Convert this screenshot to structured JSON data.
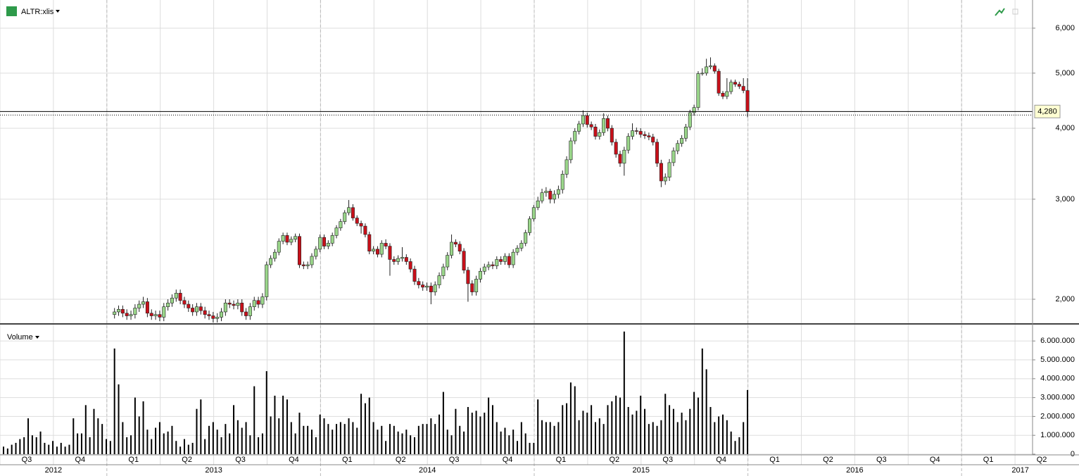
{
  "header": {
    "symbol": "ALTR:xlis",
    "volume_label": "Volume"
  },
  "chart_data": [
    {
      "type": "candlestick",
      "log": true,
      "grid": true,
      "up_color": "#9ad68a",
      "down_color": "#c8101a",
      "ylim": [
        1815,
        6725
      ],
      "yticks": [
        {
          "value": 2000,
          "label": "2,000"
        },
        {
          "value": 3000,
          "label": "3,000"
        },
        {
          "value": 4000,
          "label": "4,000"
        },
        {
          "value": 5000,
          "label": "5,000"
        },
        {
          "value": 6000,
          "label": "6,000"
        }
      ],
      "last_price": {
        "value": 4280,
        "label": "4,280"
      },
      "candles": [
        null,
        null,
        null,
        null,
        null,
        null,
        null,
        null,
        null,
        null,
        null,
        null,
        null,
        null,
        null,
        null,
        null,
        null,
        null,
        null,
        null,
        null,
        null,
        null,
        null,
        null,
        null,
        [
          1880,
          1930,
          1850,
          1900
        ],
        [
          1900,
          1950,
          1870,
          1920
        ],
        [
          1920,
          1950,
          1860,
          1890
        ],
        [
          1890,
          1920,
          1840,
          1870
        ],
        [
          1870,
          1910,
          1840,
          1880
        ],
        [
          1880,
          1960,
          1850,
          1930
        ],
        [
          1930,
          1990,
          1900,
          1960
        ],
        [
          1960,
          2020,
          1930,
          1980
        ],
        [
          1980,
          2010,
          1860,
          1890
        ],
        [
          1890,
          1920,
          1840,
          1870
        ],
        [
          1870,
          1910,
          1840,
          1880
        ],
        [
          1880,
          1910,
          1830,
          1860
        ],
        [
          1860,
          1970,
          1830,
          1940
        ],
        [
          1940,
          2000,
          1910,
          1970
        ],
        [
          1970,
          2040,
          1940,
          2010
        ],
        [
          2010,
          2080,
          1980,
          2050
        ],
        [
          2050,
          2080,
          1960,
          1990
        ],
        [
          1990,
          2020,
          1930,
          1960
        ],
        [
          1960,
          1990,
          1900,
          1930
        ],
        [
          1930,
          1960,
          1870,
          1900
        ],
        [
          1900,
          1970,
          1870,
          1940
        ],
        [
          1940,
          1970,
          1880,
          1910
        ],
        [
          1910,
          1940,
          1850,
          1880
        ],
        [
          1880,
          1910,
          1840,
          1870
        ],
        [
          1870,
          1900,
          1820,
          1850
        ],
        [
          1850,
          1890,
          1820,
          1860
        ],
        [
          1860,
          1930,
          1830,
          1900
        ],
        [
          1900,
          2000,
          1870,
          1970
        ],
        [
          1970,
          2000,
          1930,
          1960
        ],
        [
          1960,
          1990,
          1920,
          1950
        ],
        [
          1950,
          2000,
          1920,
          1970
        ],
        [
          1970,
          2000,
          1870,
          1900
        ],
        [
          1900,
          1930,
          1840,
          1870
        ],
        [
          1870,
          1970,
          1840,
          1940
        ],
        [
          1940,
          2020,
          1910,
          1990
        ],
        [
          1990,
          2020,
          1930,
          1960
        ],
        [
          1960,
          2050,
          1930,
          2020
        ],
        [
          2020,
          2330,
          1990,
          2300
        ],
        [
          2300,
          2390,
          2270,
          2360
        ],
        [
          2360,
          2450,
          2330,
          2420
        ],
        [
          2420,
          2560,
          2390,
          2530
        ],
        [
          2530,
          2620,
          2500,
          2590
        ],
        [
          2590,
          2620,
          2490,
          2520
        ],
        [
          2520,
          2580,
          2490,
          2550
        ],
        [
          2550,
          2610,
          2520,
          2580
        ],
        [
          2580,
          2610,
          2270,
          2300
        ],
        [
          2300,
          2330,
          2260,
          2290
        ],
        [
          2290,
          2330,
          2260,
          2300
        ],
        [
          2300,
          2410,
          2270,
          2380
        ],
        [
          2380,
          2480,
          2350,
          2450
        ],
        [
          2450,
          2600,
          2420,
          2570
        ],
        [
          2570,
          2600,
          2450,
          2480
        ],
        [
          2480,
          2540,
          2450,
          2510
        ],
        [
          2510,
          2620,
          2480,
          2590
        ],
        [
          2590,
          2700,
          2560,
          2670
        ],
        [
          2670,
          2770,
          2640,
          2740
        ],
        [
          2740,
          2870,
          2710,
          2840
        ],
        [
          2840,
          2990,
          2810,
          2900
        ],
        [
          2900,
          2940,
          2750,
          2780
        ],
        [
          2780,
          2810,
          2690,
          2720
        ],
        [
          2720,
          2750,
          2610,
          2690
        ],
        [
          2690,
          2720,
          2570,
          2600
        ],
        [
          2600,
          2630,
          2400,
          2430
        ],
        [
          2430,
          2480,
          2400,
          2450
        ],
        [
          2450,
          2480,
          2370,
          2400
        ],
        [
          2400,
          2540,
          2370,
          2510
        ],
        [
          2510,
          2550,
          2450,
          2480
        ],
        [
          2480,
          2510,
          2200,
          2350
        ],
        [
          2350,
          2380,
          2300,
          2330
        ],
        [
          2330,
          2390,
          2300,
          2360
        ],
        [
          2360,
          2470,
          2330,
          2370
        ],
        [
          2370,
          2400,
          2300,
          2330
        ],
        [
          2330,
          2360,
          2230,
          2260
        ],
        [
          2260,
          2290,
          2120,
          2150
        ],
        [
          2150,
          2180,
          2090,
          2120
        ],
        [
          2120,
          2150,
          2070,
          2100
        ],
        [
          2100,
          2140,
          2070,
          2110
        ],
        [
          2110,
          2140,
          1960,
          2060
        ],
        [
          2060,
          2150,
          2030,
          2120
        ],
        [
          2120,
          2230,
          2090,
          2200
        ],
        [
          2200,
          2310,
          2170,
          2280
        ],
        [
          2280,
          2420,
          2250,
          2390
        ],
        [
          2390,
          2600,
          2360,
          2520
        ],
        [
          2520,
          2550,
          2470,
          2500
        ],
        [
          2500,
          2530,
          2400,
          2430
        ],
        [
          2430,
          2460,
          2220,
          2250
        ],
        [
          2250,
          2280,
          1980,
          2130
        ],
        [
          2130,
          2160,
          2030,
          2060
        ],
        [
          2060,
          2200,
          2030,
          2170
        ],
        [
          2170,
          2270,
          2140,
          2240
        ],
        [
          2240,
          2310,
          2210,
          2280
        ],
        [
          2280,
          2330,
          2250,
          2300
        ],
        [
          2300,
          2330,
          2260,
          2290
        ],
        [
          2290,
          2380,
          2260,
          2350
        ],
        [
          2350,
          2380,
          2300,
          2330
        ],
        [
          2330,
          2410,
          2300,
          2380
        ],
        [
          2380,
          2410,
          2270,
          2300
        ],
        [
          2300,
          2450,
          2270,
          2420
        ],
        [
          2420,
          2490,
          2390,
          2460
        ],
        [
          2460,
          2540,
          2430,
          2510
        ],
        [
          2510,
          2650,
          2480,
          2620
        ],
        [
          2620,
          2800,
          2590,
          2770
        ],
        [
          2770,
          2930,
          2740,
          2900
        ],
        [
          2900,
          3030,
          2870,
          2980
        ],
        [
          2980,
          3130,
          2950,
          3080
        ],
        [
          3080,
          3150,
          3030,
          3100
        ],
        [
          3100,
          3130,
          2950,
          3000
        ],
        [
          3000,
          3110,
          2950,
          3060
        ],
        [
          3060,
          3170,
          3010,
          3120
        ],
        [
          3120,
          3370,
          3070,
          3320
        ],
        [
          3320,
          3570,
          3270,
          3520
        ],
        [
          3520,
          3850,
          3470,
          3800
        ],
        [
          3800,
          4000,
          3750,
          3950
        ],
        [
          3950,
          4120,
          3900,
          4070
        ],
        [
          4070,
          4300,
          4020,
          4210
        ],
        [
          4210,
          4260,
          4010,
          4060
        ],
        [
          4060,
          4110,
          3970,
          4020
        ],
        [
          4020,
          4070,
          3820,
          3870
        ],
        [
          3870,
          3980,
          3820,
          3930
        ],
        [
          3930,
          4250,
          3880,
          4160
        ],
        [
          4160,
          4210,
          3950,
          4000
        ],
        [
          4000,
          4050,
          3730,
          3780
        ],
        [
          3780,
          3830,
          3550,
          3600
        ],
        [
          3600,
          3650,
          3420,
          3470
        ],
        [
          3470,
          3710,
          3300,
          3660
        ],
        [
          3660,
          3920,
          3610,
          3870
        ],
        [
          3870,
          4080,
          3820,
          3960
        ],
        [
          3960,
          4010,
          3900,
          3950
        ],
        [
          3950,
          4000,
          3850,
          3900
        ],
        [
          3900,
          3950,
          3830,
          3880
        ],
        [
          3880,
          3930,
          3810,
          3860
        ],
        [
          3860,
          3910,
          3730,
          3780
        ],
        [
          3780,
          3830,
          3420,
          3470
        ],
        [
          3470,
          3520,
          3150,
          3230
        ],
        [
          3230,
          3330,
          3180,
          3280
        ],
        [
          3280,
          3530,
          3230,
          3480
        ],
        [
          3480,
          3700,
          3430,
          3650
        ],
        [
          3650,
          3810,
          3600,
          3760
        ],
        [
          3760,
          3890,
          3710,
          3840
        ],
        [
          3840,
          4070,
          3790,
          4020
        ],
        [
          4020,
          4310,
          3970,
          4260
        ],
        [
          4260,
          4400,
          4210,
          4350
        ],
        [
          4350,
          5040,
          4300,
          4990
        ],
        [
          4990,
          5100,
          4950,
          5000
        ],
        [
          5000,
          5300,
          4950,
          5130
        ],
        [
          5130,
          5330,
          5080,
          5150
        ],
        [
          5150,
          5200,
          4990,
          5040
        ],
        [
          5040,
          5090,
          4560,
          4610
        ],
        [
          4610,
          4650,
          4500,
          4550
        ],
        [
          4550,
          4900,
          4500,
          4640
        ],
        [
          4640,
          4870,
          4590,
          4820
        ],
        [
          4820,
          4870,
          4730,
          4780
        ],
        [
          4780,
          4830,
          4690,
          4740
        ],
        [
          4740,
          4900,
          4610,
          4660
        ],
        [
          4660,
          4900,
          4180,
          4280
        ]
      ]
    },
    {
      "type": "bar",
      "color": "#000000",
      "grid": true,
      "ylim": [
        0,
        6830000
      ],
      "yticks": [
        0,
        {
          "value": 1000000,
          "label": "1.000.000"
        },
        {
          "value": 2000000,
          "label": "2.000.000"
        },
        {
          "value": 3000000,
          "label": "3.000.000"
        },
        {
          "value": 4000000,
          "label": "4.000.000"
        },
        {
          "value": 5000000,
          "label": "5.000.000"
        },
        {
          "value": 6000000,
          "label": "6.000.000"
        }
      ],
      "values": [
        400000,
        300000,
        500000,
        600000,
        800000,
        900000,
        1900000,
        1000000,
        900000,
        1200000,
        600000,
        500000,
        700000,
        400000,
        600000,
        400000,
        500000,
        1900000,
        1100000,
        1100000,
        2600000,
        900000,
        2400000,
        1900000,
        1600000,
        800000,
        700000,
        5600000,
        3700000,
        1700000,
        900000,
        1000000,
        3000000,
        2000000,
        2800000,
        1300000,
        800000,
        1400000,
        1700000,
        1100000,
        1200000,
        1500000,
        700000,
        400000,
        800000,
        500000,
        600000,
        2400000,
        2900000,
        800000,
        1500000,
        1700000,
        1300000,
        900000,
        1600000,
        1100000,
        2600000,
        1800000,
        1400000,
        1700000,
        1000000,
        3600000,
        900000,
        1100000,
        4400000,
        2000000,
        3100000,
        1900000,
        3100000,
        2900000,
        1700000,
        1100000,
        2200000,
        1500000,
        1500000,
        1300000,
        900000,
        2100000,
        1900000,
        1600000,
        1300000,
        1600000,
        1700000,
        1600000,
        1900000,
        1700000,
        1400000,
        3200000,
        2700000,
        3000000,
        1700000,
        1300000,
        1500000,
        700000,
        1600000,
        1500000,
        1200000,
        1100000,
        1300000,
        1000000,
        900000,
        1500000,
        1600000,
        1600000,
        1900000,
        1600000,
        2100000,
        3300000,
        1300000,
        1000000,
        2400000,
        1500000,
        1200000,
        2500000,
        2200000,
        2300000,
        2000000,
        2200000,
        3000000,
        2600000,
        1700000,
        1200000,
        1400000,
        1000000,
        1300000,
        700000,
        1700000,
        1100000,
        600000,
        600000,
        2900000,
        1800000,
        1700000,
        1700000,
        1500000,
        1700000,
        2600000,
        2700000,
        3800000,
        3600000,
        1800000,
        2300000,
        2200000,
        2600000,
        1700000,
        1900000,
        1600000,
        2600000,
        2800000,
        3100000,
        3000000,
        6500000,
        2500000,
        2100000,
        2300000,
        3100000,
        2400000,
        1600000,
        1700000,
        1500000,
        1800000,
        3200000,
        2600000,
        2400000,
        1700000,
        2200000,
        1800000,
        2400000,
        3300000,
        3000000,
        5600000,
        4500000,
        2500000,
        1700000,
        2000000,
        2100000,
        1800000,
        1200000,
        700000,
        900000,
        1700000,
        3400000
      ]
    }
  ],
  "x_axis": {
    "quarters": [
      "Q3",
      "Q4",
      "Q1",
      "Q2",
      "Q3",
      "Q4",
      "Q1",
      "Q2",
      "Q3",
      "Q4",
      "Q1",
      "Q2",
      "Q3",
      "Q4",
      "Q1",
      "Q2",
      "Q3",
      "Q4",
      "Q1",
      "Q2"
    ],
    "years": [
      "2012",
      "2013",
      "2014",
      "2015",
      "2016",
      "2017"
    ]
  }
}
